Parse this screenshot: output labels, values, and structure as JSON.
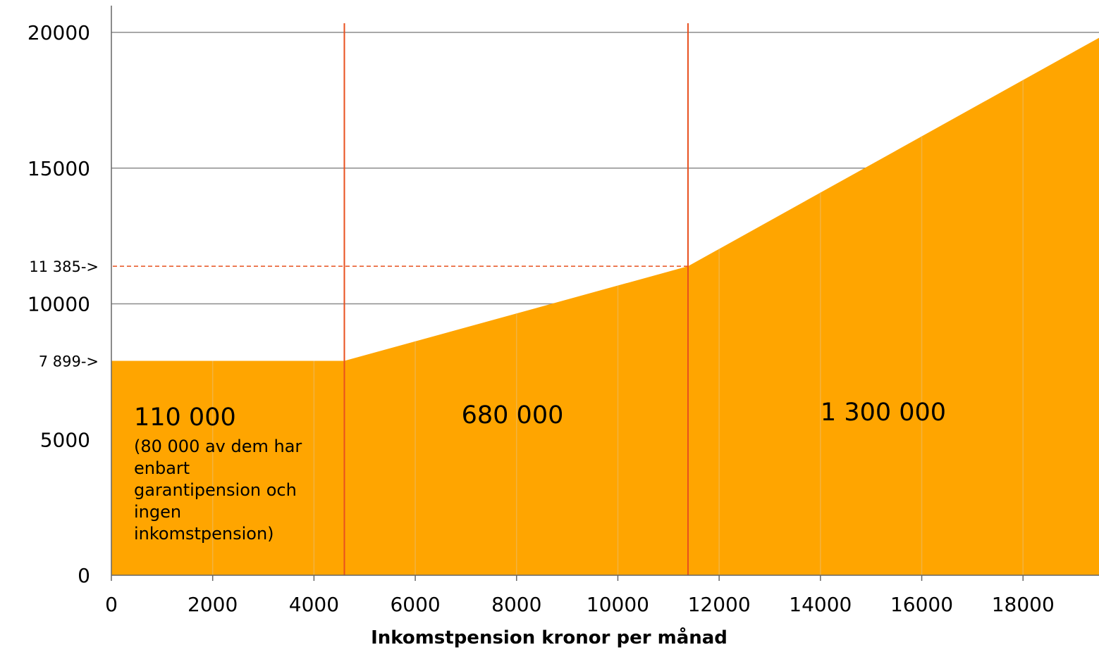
{
  "chart_data": {
    "type": "area",
    "title": "",
    "xlabel": "Inkomstpension kronor per månad",
    "ylabel": "",
    "xlim": [
      0,
      19500
    ],
    "ylim": [
      0,
      20000
    ],
    "x_ticks": [
      0,
      2000,
      4000,
      6000,
      8000,
      10000,
      12000,
      14000,
      16000,
      18000
    ],
    "y_ticks": [
      0,
      5000,
      10000,
      15000,
      20000
    ],
    "grid": "horizontal",
    "series": [
      {
        "x": [
          0,
          4600,
          11385,
          19500
        ],
        "y": [
          7899,
          7899,
          11385,
          19800
        ],
        "color": "#ffa500"
      }
    ],
    "thresholds_x": [
      4600,
      11385
    ],
    "threshold_color": "#e8501e",
    "y_markers": [
      {
        "value": 11385,
        "label": "11 385->",
        "dashed_to_x": 11385
      },
      {
        "value": 7899,
        "label": "7 899->"
      }
    ],
    "segments": [
      {
        "count": "110 000",
        "note": [
          "(80 000 av dem har",
          "enbart",
          "garantipension och",
          "ingen",
          "inkomstpension)"
        ]
      },
      {
        "count": "680 000",
        "note": []
      },
      {
        "count": "1 300 000",
        "note": []
      }
    ]
  }
}
